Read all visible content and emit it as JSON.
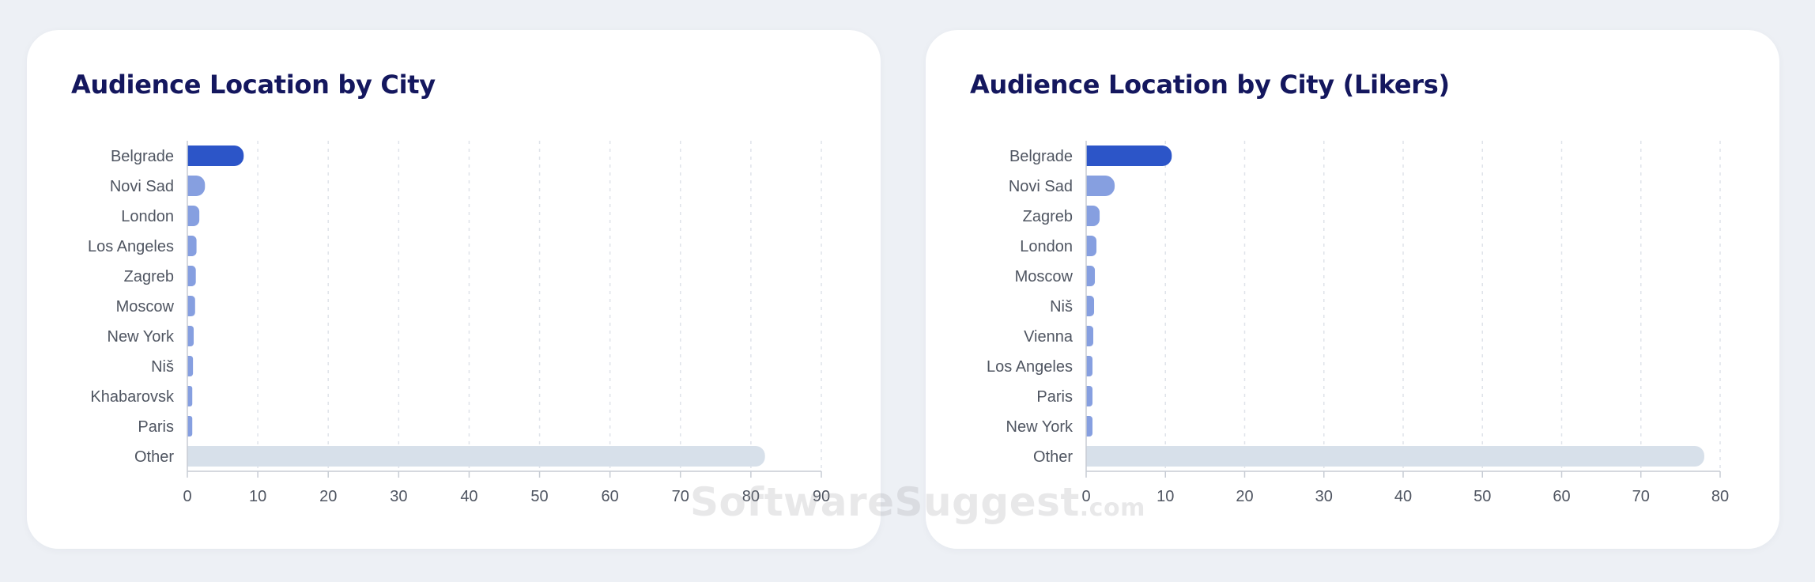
{
  "watermark": {
    "main": "SoftwareSuggest",
    "suffix": ".com"
  },
  "chart_data": [
    {
      "type": "bar",
      "orientation": "horizontal",
      "title": "Audience Location by City",
      "categories": [
        "Belgrade",
        "Novi Sad",
        "London",
        "Los Angeles",
        "Zagreb",
        "Moscow",
        "New York",
        "Niš",
        "Khabarovsk",
        "Paris",
        "Other"
      ],
      "values": [
        8,
        2.5,
        1.7,
        1.3,
        1.2,
        1.1,
        0.9,
        0.8,
        0.7,
        0.7,
        82
      ],
      "xlim": [
        0,
        90
      ],
      "xticks": [
        0,
        10,
        20,
        30,
        40,
        50,
        60,
        70,
        80,
        90
      ],
      "xlabel": "",
      "ylabel": "",
      "grid": "vertical-dashed",
      "legend": "none",
      "colors": {
        "top": "#2c55c8",
        "rest": "#869fe0",
        "other": "#d7e0ea"
      }
    },
    {
      "type": "bar",
      "orientation": "horizontal",
      "title": "Audience Location by City (Likers)",
      "categories": [
        "Belgrade",
        "Novi Sad",
        "Zagreb",
        "London",
        "Moscow",
        "Niš",
        "Vienna",
        "Los Angeles",
        "Paris",
        "New York",
        "Other"
      ],
      "values": [
        10.8,
        3.6,
        1.7,
        1.3,
        1.1,
        1.0,
        0.9,
        0.8,
        0.8,
        0.8,
        78
      ],
      "xlim": [
        0,
        80
      ],
      "xticks": [
        0,
        10,
        20,
        30,
        40,
        50,
        60,
        70,
        80
      ],
      "xlabel": "",
      "ylabel": "",
      "grid": "vertical-dashed",
      "legend": "none",
      "colors": {
        "top": "#2c55c8",
        "rest": "#869fe0",
        "other": "#d7e0ea"
      }
    }
  ]
}
